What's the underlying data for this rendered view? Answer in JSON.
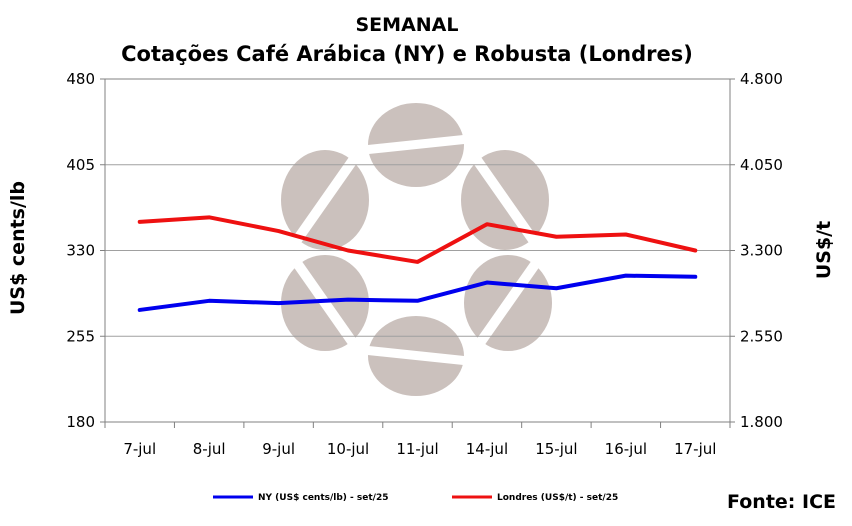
{
  "chart_data": {
    "type": "line",
    "title": "SEMANAL",
    "subtitle": "Cotações Café Arábica (NY) e Robusta (Londres)",
    "ylabel_left": "US$ cents/lb",
    "ylabel_right": "US$/t",
    "categories": [
      "7-jul",
      "8-jul",
      "9-jul",
      "10-jul",
      "11-jul",
      "14-jul",
      "15-jul",
      "16-jul",
      "17-jul"
    ],
    "left_axis": {
      "range": [
        180,
        480
      ],
      "ticks": [
        "180",
        "255",
        "330",
        "405",
        "480"
      ],
      "tick_values": [
        180,
        255,
        330,
        405,
        480
      ]
    },
    "right_axis": {
      "range": [
        1800,
        4800
      ],
      "ticks": [
        "1.800",
        "2.550",
        "3.300",
        "4.050",
        "4.800"
      ],
      "tick_values": [
        1800,
        2550,
        3300,
        4050,
        4800
      ]
    },
    "grid": true,
    "legend_position": "bottom",
    "series": [
      {
        "name": "NY (US$ cents/lb) - set/25",
        "axis": "left",
        "color": "#0000ee",
        "values": [
          278,
          286,
          284,
          287,
          286,
          302,
          297,
          308,
          307
        ]
      },
      {
        "name": "Londres (US$/t) - set/25",
        "axis": "right",
        "color": "#ee1111",
        "values": [
          3550,
          3590,
          3470,
          3300,
          3200,
          3530,
          3420,
          3440,
          3300
        ]
      }
    ],
    "source": "Fonte: ICE"
  }
}
